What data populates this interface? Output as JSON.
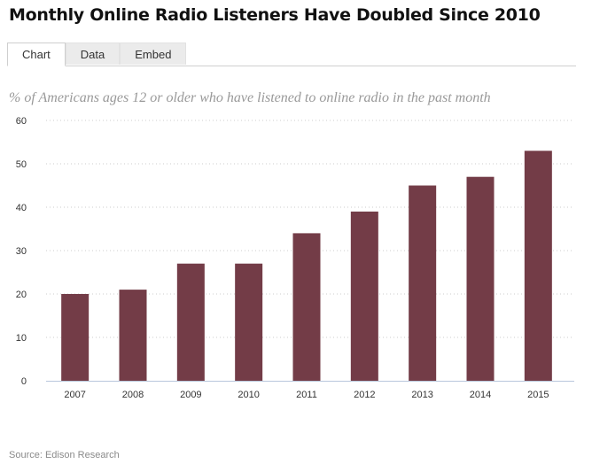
{
  "title": "Monthly Online Radio Listeners Have Doubled Since 2010",
  "tabs": [
    {
      "label": "Chart",
      "active": true
    },
    {
      "label": "Data",
      "active": false
    },
    {
      "label": "Embed",
      "active": false
    }
  ],
  "source": "Source: Edison Research",
  "colors": {
    "bar": "#733c47",
    "grid": "#cccccc",
    "axis": "#b8c7dc",
    "tick_text": "#333333"
  },
  "chart_data": {
    "type": "bar",
    "title": "",
    "subtitle": "% of Americans ages 12 or older who have listened to online radio in the past month",
    "xlabel": "",
    "ylabel": "",
    "categories": [
      "2007",
      "2008",
      "2009",
      "2010",
      "2011",
      "2012",
      "2013",
      "2014",
      "2015"
    ],
    "values": [
      20,
      21,
      27,
      27,
      34,
      39,
      45,
      47,
      53
    ],
    "ylim": [
      0,
      60
    ],
    "yticks": [
      0,
      10,
      20,
      30,
      40,
      50,
      60
    ],
    "grid": true,
    "legend": "none"
  }
}
